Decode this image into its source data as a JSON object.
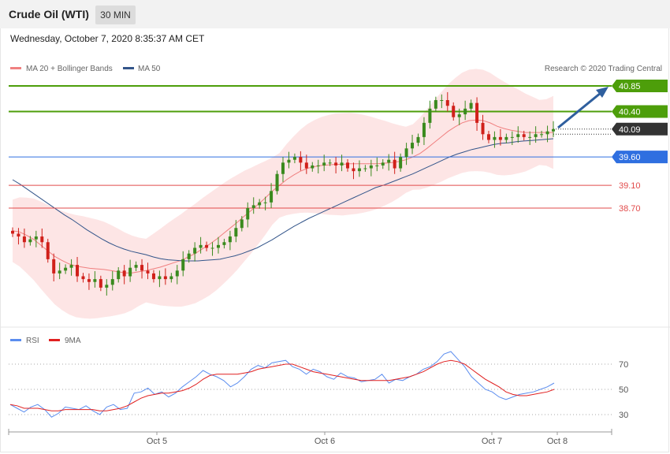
{
  "header": {
    "title": "Crude Oil (WTI)",
    "interval": "30 MIN",
    "timestamp": "Wednesday, October 7, 2020 8:35:37 AM CET"
  },
  "legend": {
    "ma20": "MA 20 + Bollinger Bands",
    "ma50": "MA 50",
    "credit": "Research © 2020 Trading Central",
    "rsi": "RSI",
    "rsi_ma": "9MA"
  },
  "colors": {
    "green_level": "#4d9e0a",
    "blue_level": "#2f6fe0",
    "red_level": "#e24b4b",
    "current": "#333333",
    "ma20": "#f08080",
    "ma50": "#33558a",
    "bands": "#fde0e0",
    "up_candle": "#3a8a1e",
    "down_candle": "#d0201a",
    "arrow": "#2f5f9e",
    "rsi": "#5b8def",
    "rsi_ma": "#e02020"
  },
  "chart_data": [
    {
      "type": "candlestick",
      "title": "Crude Oil (WTI)",
      "interval": "30 MIN",
      "x_labels": [
        "Oct 5",
        "Oct 6",
        "Oct 7",
        "Oct 8"
      ],
      "levels": [
        {
          "value": 40.85,
          "label": "40.85",
          "kind": "resistance"
        },
        {
          "value": 40.4,
          "label": "40.40",
          "kind": "resistance"
        },
        {
          "value": 40.09,
          "label": "40.09",
          "kind": "current"
        },
        {
          "value": 39.6,
          "label": "39.60",
          "kind": "pivot"
        },
        {
          "value": 39.1,
          "label": "39.10",
          "kind": "support"
        },
        {
          "value": 38.7,
          "label": "38.70",
          "kind": "support"
        }
      ],
      "close": [
        38.25,
        38.2,
        38.1,
        38.15,
        38.2,
        38.1,
        37.8,
        37.55,
        37.6,
        37.65,
        37.7,
        37.5,
        37.45,
        37.4,
        37.45,
        37.3,
        37.35,
        37.45,
        37.6,
        37.5,
        37.65,
        37.7,
        37.6,
        37.55,
        37.45,
        37.5,
        37.45,
        37.5,
        37.6,
        37.8,
        37.9,
        38.0,
        38.05,
        38.0,
        38.0,
        38.05,
        38.1,
        38.2,
        38.35,
        38.5,
        38.7,
        38.75,
        38.8,
        38.8,
        39.0,
        39.3,
        39.5,
        39.55,
        39.6,
        39.5,
        39.4,
        39.45,
        39.45,
        39.5,
        39.5,
        39.45,
        39.5,
        39.4,
        39.35,
        39.4,
        39.4,
        39.45,
        39.45,
        39.5,
        39.55,
        39.4,
        39.6,
        39.75,
        39.85,
        39.95,
        40.2,
        40.45,
        40.6,
        40.6,
        40.5,
        40.3,
        40.35,
        40.45,
        40.55,
        40.2,
        40.0,
        39.9,
        39.95,
        39.9,
        39.95,
        39.95,
        40.0,
        39.95,
        39.95,
        40.0,
        40.0,
        40.05,
        40.09
      ],
      "ma20": [
        38.3,
        38.28,
        38.22,
        38.15,
        38.05,
        37.95,
        37.85,
        37.78,
        37.72,
        37.68,
        37.66,
        37.64,
        37.63,
        37.62,
        37.6,
        37.58,
        37.56,
        37.56,
        37.58,
        37.6,
        37.63,
        37.66,
        37.7,
        37.74,
        37.78,
        37.84,
        37.9,
        37.98,
        38.06,
        38.15,
        38.25,
        38.35,
        38.45,
        38.56,
        38.66,
        38.77,
        38.88,
        39.0,
        39.1,
        39.2,
        39.28,
        39.35,
        39.4,
        39.43,
        39.45,
        39.46,
        39.47,
        39.47,
        39.48,
        39.48,
        39.48,
        39.48,
        39.48,
        39.49,
        39.5,
        39.52,
        39.55,
        39.6,
        39.66,
        39.75,
        39.85,
        39.95,
        40.05,
        40.13,
        40.2,
        40.24,
        40.25,
        40.24,
        40.2,
        40.14,
        40.1,
        40.07,
        40.05,
        40.03,
        40.03,
        40.03,
        40.03,
        40.03
      ],
      "ma50": [
        39.2,
        39.12,
        39.03,
        38.94,
        38.85,
        38.76,
        38.67,
        38.58,
        38.5,
        38.41,
        38.32,
        38.24,
        38.16,
        38.09,
        38.03,
        37.98,
        37.94,
        37.91,
        37.88,
        37.84,
        37.81,
        37.79,
        37.78,
        37.77,
        37.77,
        37.77,
        37.78,
        37.79,
        37.8,
        37.83,
        37.86,
        37.9,
        37.95,
        38.0,
        38.07,
        38.14,
        38.22,
        38.3,
        38.38,
        38.45,
        38.52,
        38.58,
        38.64,
        38.7,
        38.76,
        38.82,
        38.88,
        38.94,
        39.0,
        39.06,
        39.1,
        39.15,
        39.2,
        39.25,
        39.3,
        39.36,
        39.42,
        39.48,
        39.54,
        39.6,
        39.65,
        39.69,
        39.73,
        39.76,
        39.79,
        39.82,
        39.84,
        39.85,
        39.87,
        39.88,
        39.89,
        39.9,
        39.91,
        39.92
      ]
    },
    {
      "type": "line",
      "title": "RSI",
      "series_names": [
        "RSI",
        "9MA"
      ],
      "y_ticks": [
        70,
        50,
        30
      ],
      "rsi": [
        38,
        35,
        32,
        36,
        38,
        34,
        28,
        31,
        36,
        35,
        34,
        37,
        33,
        30,
        36,
        38,
        34,
        35,
        47,
        48,
        51,
        46,
        48,
        44,
        47,
        52,
        56,
        60,
        65,
        62,
        60,
        57,
        52,
        55,
        60,
        66,
        69,
        67,
        71,
        72,
        73,
        68,
        66,
        62,
        66,
        64,
        60,
        58,
        63,
        60,
        59,
        56,
        57,
        58,
        62,
        55,
        58,
        57,
        60,
        62,
        66,
        68,
        72,
        78,
        80,
        74,
        68,
        60,
        55,
        50,
        48,
        44,
        42,
        44,
        46,
        47,
        48,
        50,
        52,
        55
      ],
      "rsi_ma": [
        38,
        37,
        35,
        35,
        35,
        34,
        33,
        33,
        34,
        34,
        34,
        34,
        34,
        33,
        33,
        34,
        35,
        37,
        40,
        43,
        45,
        46,
        47,
        47,
        48,
        49,
        51,
        54,
        58,
        61,
        62,
        62,
        62,
        62,
        63,
        64,
        66,
        67,
        68,
        69,
        70,
        70,
        68,
        66,
        64,
        63,
        62,
        61,
        60,
        59,
        58,
        57,
        57,
        57,
        57,
        57,
        58,
        59,
        60,
        62,
        64,
        67,
        70,
        72,
        73,
        72,
        70,
        66,
        62,
        58,
        55,
        52,
        48,
        46,
        45,
        45,
        46,
        47,
        48,
        50
      ]
    }
  ]
}
